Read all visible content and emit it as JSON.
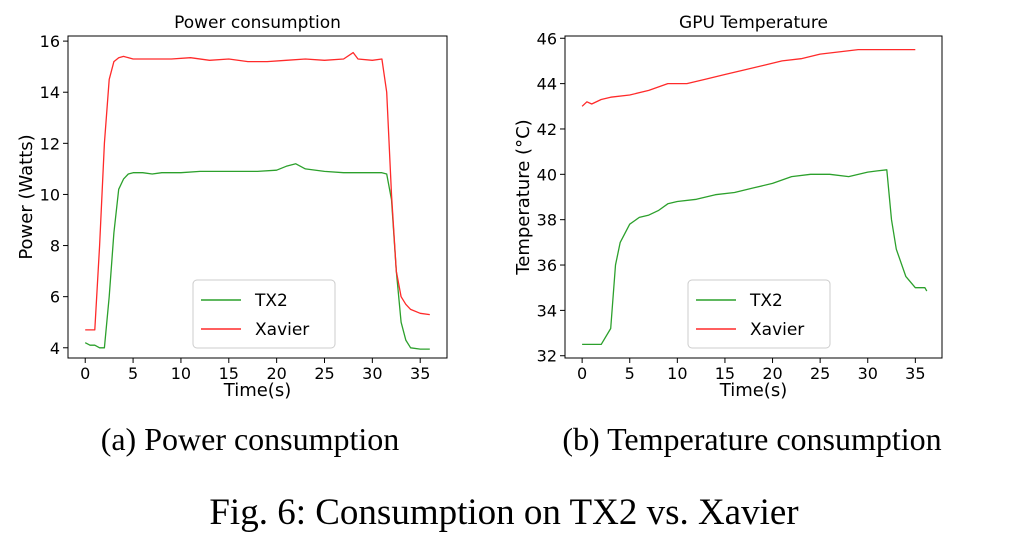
{
  "figure": {
    "caption": "Fig. 6: Consumption on TX2 vs. Xavier",
    "subcaptions": [
      "(a) Power consumption",
      "(b) Temperature consumption"
    ]
  },
  "colors": {
    "tx2": "#2ca02c",
    "xavier": "#ff2a2a",
    "frame": "#000000"
  },
  "chart_data": [
    {
      "type": "line",
      "title": "Power consumption",
      "xlabel": "Time(s)",
      "ylabel": "Power (Watts)",
      "xlim": [
        -1.8,
        37.8
      ],
      "ylim": [
        3.6,
        16.2
      ],
      "xticks": [
        0,
        5,
        10,
        15,
        20,
        25,
        30,
        35
      ],
      "yticks": [
        4,
        6,
        8,
        10,
        12,
        14,
        16
      ],
      "legend_position": "lower-center",
      "series": [
        {
          "name": "TX2",
          "color": "#2ca02c",
          "points": [
            [
              0,
              4.2
            ],
            [
              0.5,
              4.1
            ],
            [
              1,
              4.1
            ],
            [
              1.5,
              4.0
            ],
            [
              2,
              4.0
            ],
            [
              2.5,
              6.0
            ],
            [
              3,
              8.5
            ],
            [
              3.5,
              10.2
            ],
            [
              4,
              10.6
            ],
            [
              4.5,
              10.8
            ],
            [
              5,
              10.85
            ],
            [
              6,
              10.85
            ],
            [
              7,
              10.8
            ],
            [
              8,
              10.85
            ],
            [
              10,
              10.85
            ],
            [
              12,
              10.9
            ],
            [
              14,
              10.9
            ],
            [
              16,
              10.9
            ],
            [
              18,
              10.9
            ],
            [
              20,
              10.95
            ],
            [
              21,
              11.1
            ],
            [
              22,
              11.2
            ],
            [
              23,
              11.0
            ],
            [
              25,
              10.9
            ],
            [
              27,
              10.85
            ],
            [
              29,
              10.85
            ],
            [
              31,
              10.85
            ],
            [
              31.5,
              10.8
            ],
            [
              32,
              9.8
            ],
            [
              32.5,
              7.0
            ],
            [
              33,
              5.0
            ],
            [
              33.5,
              4.3
            ],
            [
              34,
              4.0
            ],
            [
              35,
              3.95
            ],
            [
              36,
              3.95
            ]
          ]
        },
        {
          "name": "Xavier",
          "color": "#ff2a2a",
          "points": [
            [
              0,
              4.7
            ],
            [
              0.5,
              4.7
            ],
            [
              1,
              4.7
            ],
            [
              1.5,
              8.0
            ],
            [
              2,
              12.0
            ],
            [
              2.5,
              14.5
            ],
            [
              3,
              15.2
            ],
            [
              3.5,
              15.35
            ],
            [
              4,
              15.4
            ],
            [
              5,
              15.3
            ],
            [
              7,
              15.3
            ],
            [
              9,
              15.3
            ],
            [
              11,
              15.35
            ],
            [
              13,
              15.25
            ],
            [
              15,
              15.3
            ],
            [
              17,
              15.2
            ],
            [
              19,
              15.2
            ],
            [
              21,
              15.25
            ],
            [
              23,
              15.3
            ],
            [
              25,
              15.25
            ],
            [
              27,
              15.3
            ],
            [
              28,
              15.55
            ],
            [
              28.5,
              15.3
            ],
            [
              30,
              15.25
            ],
            [
              31,
              15.3
            ],
            [
              31.5,
              14.0
            ],
            [
              32,
              10.0
            ],
            [
              32.5,
              7.0
            ],
            [
              33,
              6.0
            ],
            [
              33.5,
              5.7
            ],
            [
              34,
              5.5
            ],
            [
              35,
              5.35
            ],
            [
              36,
              5.3
            ]
          ]
        }
      ]
    },
    {
      "type": "line",
      "title": "GPU Temperature",
      "xlabel": "Time(s)",
      "ylabel": "Temperature (°C)",
      "xlim": [
        -1.8,
        37.8
      ],
      "ylim": [
        31.9,
        46.1
      ],
      "xticks": [
        0,
        5,
        10,
        15,
        20,
        25,
        30,
        35
      ],
      "yticks": [
        32,
        34,
        36,
        38,
        40,
        42,
        44,
        46
      ],
      "legend_position": "lower-center",
      "series": [
        {
          "name": "TX2",
          "color": "#2ca02c",
          "points": [
            [
              0,
              32.5
            ],
            [
              1,
              32.5
            ],
            [
              2,
              32.5
            ],
            [
              3,
              33.2
            ],
            [
              3.5,
              36.0
            ],
            [
              4,
              37.0
            ],
            [
              5,
              37.8
            ],
            [
              6,
              38.1
            ],
            [
              7,
              38.2
            ],
            [
              8,
              38.4
            ],
            [
              9,
              38.7
            ],
            [
              10,
              38.8
            ],
            [
              12,
              38.9
            ],
            [
              14,
              39.1
            ],
            [
              16,
              39.2
            ],
            [
              18,
              39.4
            ],
            [
              20,
              39.6
            ],
            [
              22,
              39.9
            ],
            [
              24,
              40.0
            ],
            [
              26,
              40.0
            ],
            [
              28,
              39.9
            ],
            [
              30,
              40.1
            ],
            [
              31,
              40.15
            ],
            [
              32,
              40.2
            ],
            [
              32.5,
              38.0
            ],
            [
              33,
              36.7
            ],
            [
              34,
              35.5
            ],
            [
              35,
              35.0
            ],
            [
              36,
              35.0
            ],
            [
              36.2,
              34.85
            ]
          ]
        },
        {
          "name": "Xavier",
          "color": "#ff2a2a",
          "points": [
            [
              0,
              43.0
            ],
            [
              0.5,
              43.2
            ],
            [
              1,
              43.1
            ],
            [
              2,
              43.3
            ],
            [
              3,
              43.4
            ],
            [
              5,
              43.5
            ],
            [
              7,
              43.7
            ],
            [
              9,
              44.0
            ],
            [
              11,
              44.0
            ],
            [
              13,
              44.2
            ],
            [
              15,
              44.4
            ],
            [
              17,
              44.6
            ],
            [
              19,
              44.8
            ],
            [
              21,
              45.0
            ],
            [
              23,
              45.1
            ],
            [
              25,
              45.3
            ],
            [
              27,
              45.4
            ],
            [
              29,
              45.5
            ],
            [
              31,
              45.5
            ],
            [
              33,
              45.5
            ],
            [
              35,
              45.5
            ]
          ]
        }
      ]
    }
  ]
}
